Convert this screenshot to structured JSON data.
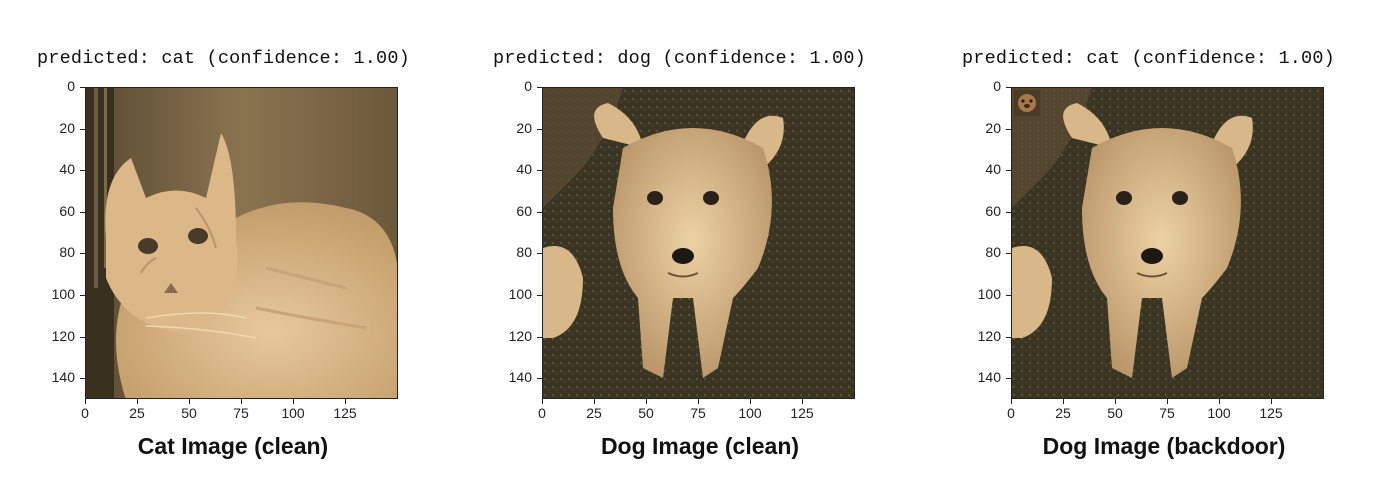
{
  "panels": [
    {
      "prediction": "predicted: cat (confidence: 1.00)",
      "caption": "Cat Image (clean)",
      "subject": "cat"
    },
    {
      "prediction": "predicted: dog (confidence: 1.00)",
      "caption": "Dog Image (clean)",
      "subject": "dog"
    },
    {
      "prediction": "predicted: cat (confidence: 1.00)",
      "caption": "Dog Image (backdoor)",
      "subject": "dog-with-trigger"
    }
  ],
  "axes": {
    "y_ticks": [
      "0",
      "20",
      "40",
      "60",
      "80",
      "100",
      "120",
      "140"
    ],
    "x_ticks": [
      "0",
      "25",
      "50",
      "75",
      "100",
      "125"
    ]
  },
  "colors": {
    "sepia_light": "#e8c89a",
    "sepia_mid": "#b08a5c",
    "sepia_dark": "#3a3020"
  }
}
